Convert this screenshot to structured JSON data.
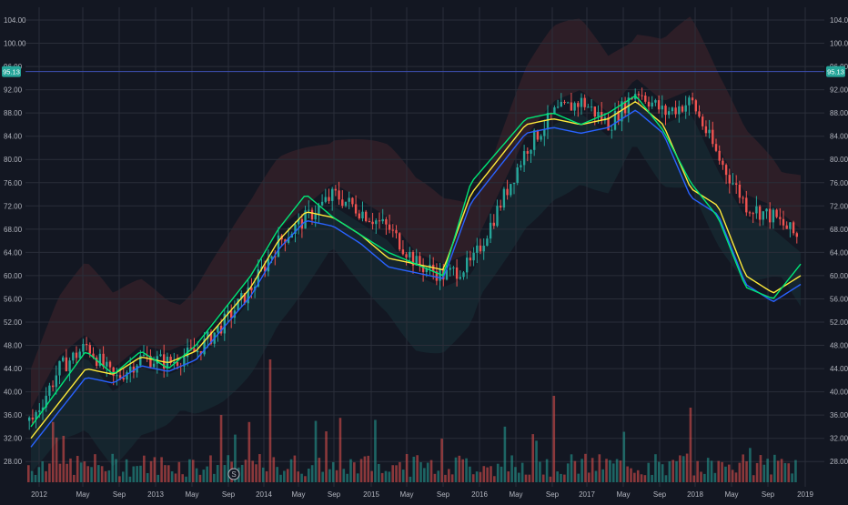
{
  "chart_data": {
    "type": "candlestick",
    "y_ticks": [
      28,
      32,
      36,
      40,
      44,
      48,
      52,
      56,
      60,
      64,
      68,
      72,
      76,
      80,
      84,
      88,
      92,
      96,
      100,
      104
    ],
    "y_tick_labels": [
      "28.00",
      "32.00",
      "36.00",
      "40.00",
      "44.00",
      "48.00",
      "52.00",
      "56.00",
      "60.00",
      "64.00",
      "68.00",
      "72.00",
      "76.00",
      "80.00",
      "84.00",
      "88.00",
      "92.00",
      "96.00",
      "100.00",
      "104.00"
    ],
    "x_tick_labels": [
      "2012",
      "May",
      "Sep",
      "2013",
      "May",
      "Sep",
      "2014",
      "May",
      "Sep",
      "2015",
      "May",
      "Sep",
      "2016",
      "May",
      "Sep",
      "2017",
      "May",
      "Sep",
      "2018",
      "May",
      "Sep",
      "2019"
    ],
    "last_price": 95.13,
    "last_price_label": "95.13",
    "event_marker": "S",
    "colors": {
      "background": "#131722",
      "up": "#26a69a",
      "down": "#ef5350",
      "fast_ma": "#00e676",
      "slow_ma": "#ffeb3b",
      "mid_ma": "#2962ff",
      "price_line": "#3f51b5",
      "badge": "#26a69a"
    },
    "series": [
      {
        "name": "close",
        "x": [
          0.0,
          0.25,
          0.5,
          0.75,
          1.0,
          1.25,
          1.5,
          1.75,
          2.0,
          2.25,
          2.5,
          2.75,
          3.0,
          3.25,
          3.5,
          3.75,
          4.0,
          4.25,
          4.5,
          4.75,
          5.0,
          5.25,
          5.5,
          5.75,
          6.0,
          6.25,
          6.5,
          6.75,
          7.0
        ],
        "values": [
          35,
          44,
          48,
          42,
          46,
          45,
          47,
          52,
          58,
          66,
          70,
          74,
          71,
          68,
          62,
          60,
          62,
          72,
          82,
          88,
          90,
          86,
          92,
          88,
          90,
          80,
          72,
          70,
          66
        ]
      },
      {
        "name": "fast_ma",
        "x": [
          0.0,
          0.5,
          0.75,
          1.0,
          1.25,
          1.5,
          2.0,
          2.25,
          2.5,
          2.75,
          3.0,
          3.25,
          3.5,
          3.75,
          4.0,
          4.5,
          4.75,
          5.0,
          5.25,
          5.5,
          5.75,
          6.0,
          6.25,
          6.5,
          6.75,
          7.0
        ],
        "values": [
          34,
          47,
          43,
          47,
          44,
          48,
          60,
          68,
          74,
          70,
          67,
          64,
          62,
          60,
          76,
          87,
          88,
          86,
          88,
          91,
          85,
          76,
          70,
          58,
          56,
          62
        ]
      },
      {
        "name": "slow_ma",
        "x": [
          0.0,
          0.5,
          0.75,
          1.0,
          1.25,
          1.5,
          2.0,
          2.25,
          2.5,
          2.75,
          3.0,
          3.25,
          3.5,
          3.75,
          4.0,
          4.5,
          4.75,
          5.0,
          5.25,
          5.5,
          5.75,
          6.0,
          6.25,
          6.5,
          6.75,
          7.0
        ],
        "values": [
          32,
          44,
          43,
          46,
          45,
          47,
          58,
          66,
          71,
          70,
          67,
          63,
          62,
          61,
          74,
          86,
          87,
          86,
          87,
          90,
          86,
          75,
          72,
          60,
          57,
          60
        ]
      }
    ]
  }
}
